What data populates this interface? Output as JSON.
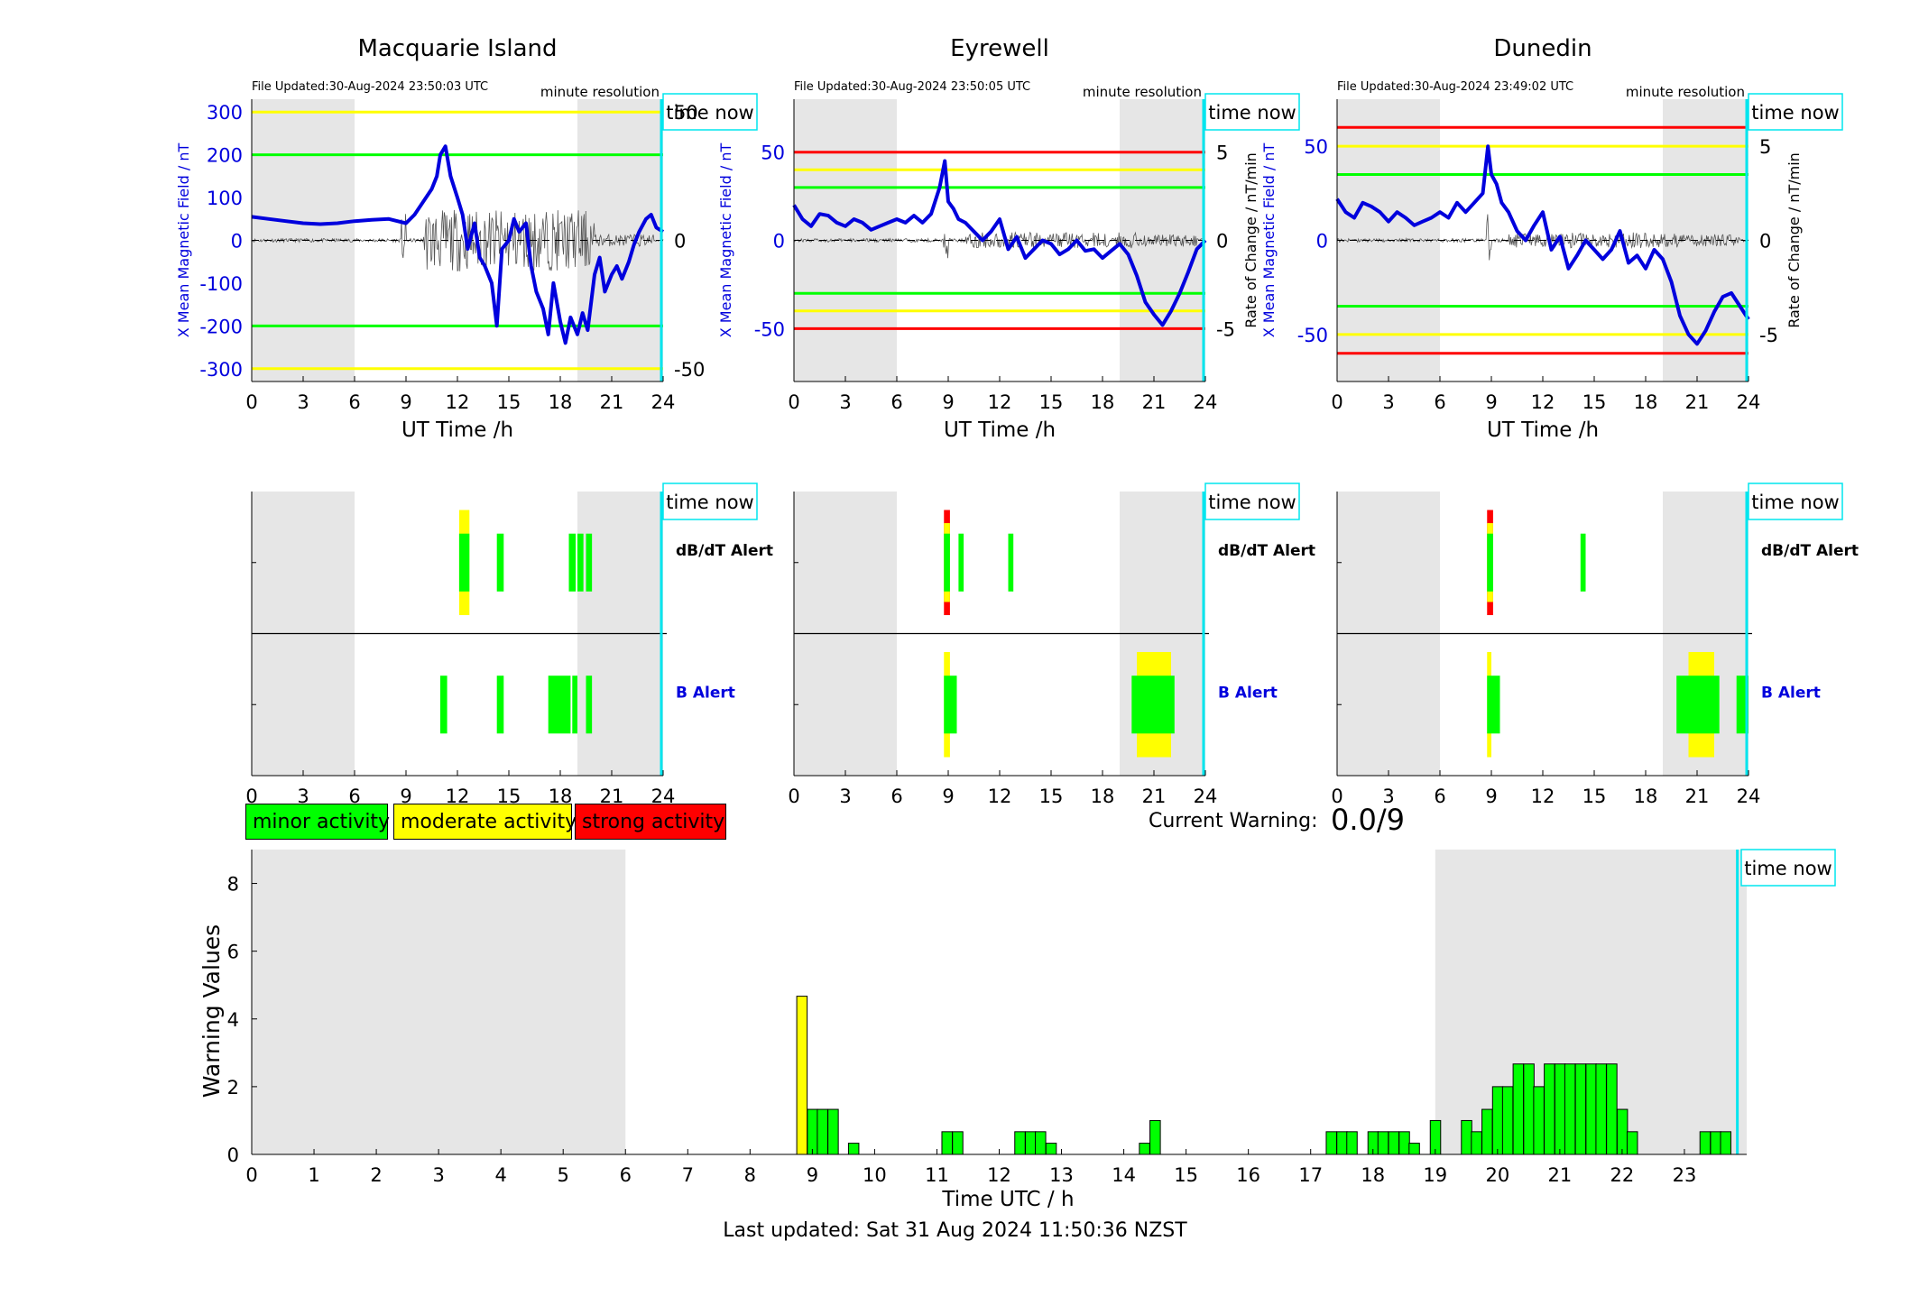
{
  "colors": {
    "minor": "#00ff00",
    "moderate": "#ffff00",
    "strong": "#ff0000",
    "field": "#0000dd",
    "time_now": "#00e5ee",
    "night": "#e6e6e6"
  },
  "common": {
    "time_now_label": "time now",
    "minute_resolution": "minute resolution",
    "xlabel_top": "UT Time /h",
    "xticks_24": [
      "0",
      "3",
      "6",
      "9",
      "12",
      "15",
      "18",
      "21",
      "24"
    ],
    "dbdt_alert": "dB/dT Alert",
    "b_alert": "B Alert"
  },
  "stations": [
    {
      "title": "Macquarie Island",
      "file_updated": "File Updated:30-Aug-2024 23:50:03 UTC",
      "ylabel_left": "X Mean Magnetic Field / nT",
      "ylabel_right": "",
      "yticks_left": [
        "300",
        "200",
        "100",
        "0",
        "-100",
        "-200",
        "-300"
      ],
      "yticks_right": [
        "50",
        "0",
        "-50"
      ]
    },
    {
      "title": "Eyrewell",
      "file_updated": "File Updated:30-Aug-2024 23:50:05 UTC",
      "ylabel_left": "X Mean Magnetic Field / nT",
      "ylabel_right": "Rate of Change / nT/min",
      "yticks_left": [
        "50",
        "0",
        "-50"
      ],
      "yticks_right": [
        "5",
        "0",
        "-5"
      ]
    },
    {
      "title": "Dunedin",
      "file_updated": "File Updated:30-Aug-2024 23:49:02 UTC",
      "ylabel_left": "X Mean Magnetic Field / nT",
      "ylabel_right": "Rate of Change / nT/min",
      "yticks_left": [
        "50",
        "0",
        "-50"
      ],
      "yticks_right": [
        "5",
        "0",
        "-5"
      ]
    }
  ],
  "legend": {
    "minor": "minor activity",
    "moderate": "moderate activity",
    "strong": "strong activity"
  },
  "current_warning": {
    "label": "Current Warning:",
    "value": "0.0/9"
  },
  "footer": "Last updated: Sat 31 Aug 2024 11:50:36 NZST",
  "chart_data": [
    {
      "type": "line",
      "title": "Macquarie Island",
      "xlabel": "UT Time /h",
      "ylabel": "X Mean Magnetic Field / nT",
      "xlim": [
        0,
        24
      ],
      "ylim": [
        -330,
        330
      ],
      "thresholds": {
        "green": [
          200,
          -200
        ],
        "yellow": [
          300,
          -300
        ]
      },
      "night_shading_hours": [
        [
          0,
          6
        ],
        [
          19,
          24
        ]
      ],
      "time_now_h": 24,
      "series": [
        {
          "x": [
            0,
            1,
            2,
            3,
            4,
            5,
            6,
            7,
            8,
            8.5,
            9,
            9.5,
            10,
            10.5,
            10.8,
            11,
            11.3,
            11.6,
            12,
            12.3,
            12.6,
            13,
            13.3,
            13.6,
            14,
            14.3,
            14.6,
            15,
            15.3,
            15.6,
            16,
            16.3,
            16.6,
            17,
            17.3,
            17.6,
            18,
            18.3,
            18.6,
            19,
            19.3,
            19.6,
            20,
            20.3,
            20.6,
            21,
            21.3,
            21.6,
            22,
            22.3,
            22.6,
            23,
            23.3,
            23.6,
            24
          ],
          "y": [
            55,
            50,
            45,
            40,
            38,
            40,
            45,
            48,
            50,
            45,
            40,
            60,
            90,
            120,
            150,
            200,
            220,
            150,
            100,
            60,
            -20,
            40,
            -40,
            -60,
            -100,
            -200,
            -20,
            0,
            50,
            20,
            40,
            -60,
            -120,
            -160,
            -220,
            -100,
            -190,
            -240,
            -180,
            -220,
            -170,
            -210,
            -80,
            -40,
            -120,
            -80,
            -60,
            -90,
            -50,
            -10,
            20,
            50,
            60,
            30,
            20
          ]
        }
      ]
    },
    {
      "type": "line",
      "title": "Eyrewell",
      "xlabel": "UT Time /h",
      "ylabel": "X Mean Magnetic Field / nT",
      "xlim": [
        0,
        24
      ],
      "ylim": [
        -80,
        80
      ],
      "thresholds": {
        "green": [
          30,
          -30
        ],
        "yellow": [
          40,
          -40
        ],
        "red": [
          50,
          -50
        ]
      },
      "night_shading_hours": [
        [
          0,
          6
        ],
        [
          19,
          24
        ]
      ],
      "time_now_h": 24,
      "series": [
        {
          "x": [
            0,
            0.5,
            1,
            1.5,
            2,
            2.5,
            3,
            3.5,
            4,
            4.5,
            5,
            5.5,
            6,
            6.5,
            7,
            7.5,
            8,
            8.5,
            8.8,
            9,
            9.3,
            9.6,
            10,
            10.5,
            11,
            11.5,
            12,
            12.5,
            13,
            13.5,
            14,
            14.5,
            15,
            15.5,
            16,
            16.5,
            17,
            17.5,
            18,
            18.5,
            19,
            19.5,
            20,
            20.5,
            21,
            21.5,
            22,
            22.5,
            23,
            23.5,
            24
          ],
          "y": [
            20,
            12,
            8,
            15,
            14,
            10,
            8,
            12,
            10,
            6,
            8,
            10,
            12,
            10,
            14,
            10,
            15,
            30,
            45,
            22,
            18,
            12,
            10,
            5,
            0,
            5,
            12,
            -5,
            2,
            -10,
            -5,
            0,
            -2,
            -8,
            -5,
            0,
            -6,
            -5,
            -10,
            -6,
            -2,
            -8,
            -20,
            -35,
            -42,
            -48,
            -40,
            -30,
            -18,
            -5,
            0
          ]
        }
      ]
    },
    {
      "type": "line",
      "title": "Dunedin",
      "xlabel": "UT Time /h",
      "ylabel": "X Mean Magnetic Field / nT",
      "xlim": [
        0,
        24
      ],
      "ylim": [
        -75,
        75
      ],
      "thresholds": {
        "green": [
          35,
          -35
        ],
        "yellow": [
          50,
          -50
        ],
        "red": [
          60,
          -60
        ]
      },
      "night_shading_hours": [
        [
          0,
          6
        ],
        [
          19,
          24
        ]
      ],
      "time_now_h": 24,
      "series": [
        {
          "x": [
            0,
            0.5,
            1,
            1.5,
            2,
            2.5,
            3,
            3.5,
            4,
            4.5,
            5,
            5.5,
            6,
            6.5,
            7,
            7.5,
            8,
            8.5,
            8.8,
            9,
            9.3,
            9.6,
            10,
            10.5,
            11,
            11.5,
            12,
            12.5,
            13,
            13.5,
            14,
            14.5,
            15,
            15.5,
            16,
            16.5,
            17,
            17.5,
            18,
            18.5,
            19,
            19.5,
            20,
            20.5,
            21,
            21.5,
            22,
            22.5,
            23,
            23.5,
            24
          ],
          "y": [
            22,
            15,
            12,
            20,
            18,
            15,
            10,
            15,
            12,
            8,
            10,
            12,
            15,
            12,
            20,
            15,
            20,
            25,
            50,
            35,
            30,
            20,
            15,
            5,
            0,
            8,
            15,
            -5,
            2,
            -15,
            -8,
            0,
            -5,
            -10,
            -5,
            5,
            -12,
            -8,
            -15,
            -5,
            -10,
            -22,
            -40,
            -50,
            -55,
            -48,
            -38,
            -30,
            -28,
            -35,
            -42
          ]
        }
      ]
    },
    {
      "type": "bar",
      "title": "",
      "xlabel": "Time UTC / h",
      "ylabel": "Warning Values",
      "xlim": [
        0,
        24
      ],
      "ylim": [
        0,
        9
      ],
      "yticks": [
        "0",
        "2",
        "4",
        "6",
        "8"
      ],
      "xticks": [
        "0",
        "1",
        "2",
        "3",
        "4",
        "5",
        "6",
        "7",
        "8",
        "9",
        "10",
        "11",
        "12",
        "13",
        "14",
        "15",
        "16",
        "17",
        "18",
        "19",
        "20",
        "21",
        "22",
        "23"
      ],
      "night_shading_hours": [
        [
          0,
          6
        ],
        [
          19,
          24
        ]
      ],
      "time_now_h": 23.85,
      "bar_width_h": 0.1667,
      "bars": [
        {
          "t": 8.75,
          "v": 4.67,
          "level": "moderate"
        },
        {
          "t": 8.92,
          "v": 1.33,
          "level": "minor"
        },
        {
          "t": 9.08,
          "v": 1.33,
          "level": "minor"
        },
        {
          "t": 9.25,
          "v": 1.33,
          "level": "minor"
        },
        {
          "t": 9.58,
          "v": 0.33,
          "level": "minor"
        },
        {
          "t": 11.08,
          "v": 0.67,
          "level": "minor"
        },
        {
          "t": 11.25,
          "v": 0.67,
          "level": "minor"
        },
        {
          "t": 12.25,
          "v": 0.67,
          "level": "minor"
        },
        {
          "t": 12.42,
          "v": 0.67,
          "level": "minor"
        },
        {
          "t": 12.58,
          "v": 0.67,
          "level": "minor"
        },
        {
          "t": 12.75,
          "v": 0.33,
          "level": "minor"
        },
        {
          "t": 14.25,
          "v": 0.33,
          "level": "minor"
        },
        {
          "t": 14.42,
          "v": 1.0,
          "level": "minor"
        },
        {
          "t": 17.25,
          "v": 0.67,
          "level": "minor"
        },
        {
          "t": 17.42,
          "v": 0.67,
          "level": "minor"
        },
        {
          "t": 17.58,
          "v": 0.67,
          "level": "minor"
        },
        {
          "t": 17.92,
          "v": 0.67,
          "level": "minor"
        },
        {
          "t": 18.08,
          "v": 0.67,
          "level": "minor"
        },
        {
          "t": 18.25,
          "v": 0.67,
          "level": "minor"
        },
        {
          "t": 18.42,
          "v": 0.67,
          "level": "minor"
        },
        {
          "t": 18.58,
          "v": 0.33,
          "level": "minor"
        },
        {
          "t": 18.92,
          "v": 1.0,
          "level": "minor"
        },
        {
          "t": 19.42,
          "v": 1.0,
          "level": "minor"
        },
        {
          "t": 19.58,
          "v": 0.67,
          "level": "minor"
        },
        {
          "t": 19.75,
          "v": 1.33,
          "level": "minor"
        },
        {
          "t": 19.92,
          "v": 2.0,
          "level": "minor"
        },
        {
          "t": 20.08,
          "v": 2.0,
          "level": "minor"
        },
        {
          "t": 20.25,
          "v": 2.67,
          "level": "minor"
        },
        {
          "t": 20.42,
          "v": 2.67,
          "level": "minor"
        },
        {
          "t": 20.58,
          "v": 2.0,
          "level": "minor"
        },
        {
          "t": 20.75,
          "v": 2.67,
          "level": "minor"
        },
        {
          "t": 20.92,
          "v": 2.67,
          "level": "minor"
        },
        {
          "t": 21.08,
          "v": 2.67,
          "level": "minor"
        },
        {
          "t": 21.25,
          "v": 2.67,
          "level": "minor"
        },
        {
          "t": 21.42,
          "v": 2.67,
          "level": "minor"
        },
        {
          "t": 21.58,
          "v": 2.67,
          "level": "minor"
        },
        {
          "t": 21.75,
          "v": 2.67,
          "level": "minor"
        },
        {
          "t": 21.92,
          "v": 1.33,
          "level": "minor"
        },
        {
          "t": 22.08,
          "v": 0.67,
          "level": "minor"
        },
        {
          "t": 23.25,
          "v": 0.67,
          "level": "minor"
        },
        {
          "t": 23.42,
          "v": 0.67,
          "level": "minor"
        },
        {
          "t": 23.58,
          "v": 0.67,
          "level": "minor"
        }
      ]
    }
  ],
  "alerts": [
    {
      "station": "Macquarie Island",
      "dbdt": [
        {
          "t0": 12.1,
          "t1": 12.7,
          "level": "moderate",
          "h": 1.0
        },
        {
          "t0": 12.1,
          "t1": 12.7,
          "level": "minor",
          "h": 0.55
        },
        {
          "t0": 14.3,
          "t1": 14.7,
          "level": "minor",
          "h": 0.55
        },
        {
          "t0": 18.5,
          "t1": 18.9,
          "level": "minor",
          "h": 0.55
        },
        {
          "t0": 19.0,
          "t1": 19.35,
          "level": "minor",
          "h": 0.55
        },
        {
          "t0": 19.5,
          "t1": 19.85,
          "level": "minor",
          "h": 0.55
        }
      ],
      "b": [
        {
          "t0": 11.0,
          "t1": 11.4,
          "level": "minor",
          "h": 0.55
        },
        {
          "t0": 14.3,
          "t1": 14.7,
          "level": "minor",
          "h": 0.55
        },
        {
          "t0": 17.3,
          "t1": 18.6,
          "level": "minor",
          "h": 0.55
        },
        {
          "t0": 18.7,
          "t1": 19.0,
          "level": "minor",
          "h": 0.55
        },
        {
          "t0": 19.5,
          "t1": 19.85,
          "level": "minor",
          "h": 0.55
        }
      ]
    },
    {
      "station": "Eyrewell",
      "dbdt": [
        {
          "t0": 8.75,
          "t1": 9.1,
          "level": "strong",
          "h": 1.0
        },
        {
          "t0": 8.75,
          "t1": 9.1,
          "level": "moderate",
          "h": 0.75
        },
        {
          "t0": 8.75,
          "t1": 9.1,
          "level": "minor",
          "h": 0.55
        },
        {
          "t0": 9.6,
          "t1": 9.9,
          "level": "minor",
          "h": 0.55
        },
        {
          "t0": 12.5,
          "t1": 12.8,
          "level": "minor",
          "h": 0.55
        }
      ],
      "b": [
        {
          "t0": 8.75,
          "t1": 9.1,
          "level": "moderate",
          "h": 1.0
        },
        {
          "t0": 8.75,
          "t1": 9.5,
          "level": "minor",
          "h": 0.55
        },
        {
          "t0": 20.0,
          "t1": 22.0,
          "level": "moderate",
          "h": 1.0
        },
        {
          "t0": 19.7,
          "t1": 22.2,
          "level": "minor",
          "h": 0.55
        }
      ]
    },
    {
      "station": "Dunedin",
      "dbdt": [
        {
          "t0": 8.75,
          "t1": 9.1,
          "level": "strong",
          "h": 1.0
        },
        {
          "t0": 8.75,
          "t1": 9.1,
          "level": "moderate",
          "h": 0.75
        },
        {
          "t0": 8.75,
          "t1": 9.1,
          "level": "minor",
          "h": 0.55
        },
        {
          "t0": 14.2,
          "t1": 14.5,
          "level": "minor",
          "h": 0.55
        }
      ],
      "b": [
        {
          "t0": 8.75,
          "t1": 9.0,
          "level": "moderate",
          "h": 1.0
        },
        {
          "t0": 8.75,
          "t1": 9.5,
          "level": "minor",
          "h": 0.55
        },
        {
          "t0": 20.5,
          "t1": 22.0,
          "level": "moderate",
          "h": 1.0
        },
        {
          "t0": 19.8,
          "t1": 22.3,
          "level": "minor",
          "h": 0.55
        },
        {
          "t0": 23.3,
          "t1": 24.0,
          "level": "minor",
          "h": 0.55
        }
      ]
    }
  ]
}
